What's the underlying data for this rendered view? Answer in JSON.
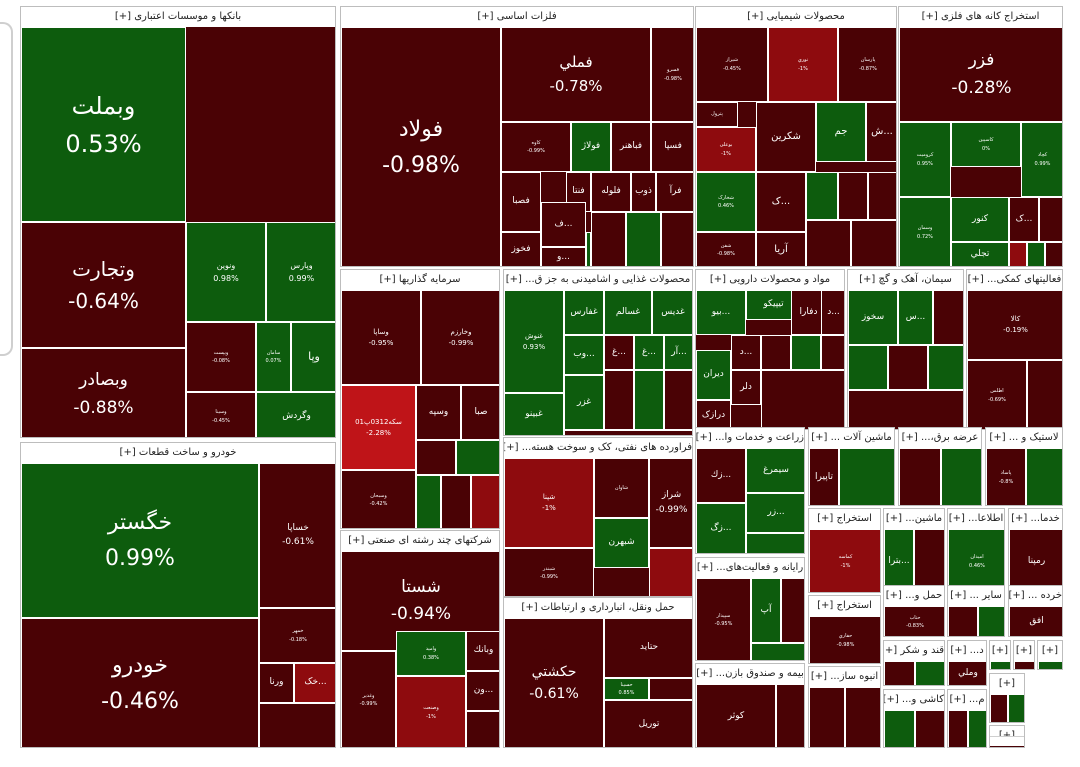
{
  "chart_data": {
    "type": "treemap",
    "title": "",
    "color_legend": {
      "positive": "#0d5c0d",
      "negative_low": "#4a0205",
      "negative_mid": "#8e0b0e",
      "negative_high": "#bf1418"
    },
    "sectors": [
      {
        "id": "banks",
        "title": "بانکها و موسسات اعتباری [+]",
        "tiles": [
          {
            "name": "وبملت",
            "pct": "0.53%",
            "change": 0.53
          },
          {
            "name": "وتجارت",
            "pct": "-0.64%",
            "change": -0.64
          },
          {
            "name": "وبصادر",
            "pct": "-0.88%",
            "change": -0.88
          },
          {
            "name": "ونوین",
            "pct": "0.98%",
            "change": 0.98
          },
          {
            "name": "وپارس",
            "pct": "0.99%",
            "change": 0.99
          },
          {
            "name": "ویپست",
            "pct": "-0.08%",
            "change": -0.08
          },
          {
            "name": "سامان",
            "pct": "0.07%",
            "change": 0.07
          },
          {
            "name": "وپا",
            "pct": "",
            "change": 0.5
          },
          {
            "name": "وسینا",
            "pct": "-0.45%",
            "change": -0.45
          },
          {
            "name": "وگردش",
            "pct": "",
            "change": 0.4
          }
        ]
      },
      {
        "id": "metals",
        "title": "فلزات اساسی [+]",
        "tiles": [
          {
            "name": "فولاد",
            "pct": "-0.98%",
            "change": -0.98
          },
          {
            "name": "فملي",
            "pct": "-0.78%",
            "change": -0.78
          },
          {
            "name": "فسپا",
            "pct": "",
            "change": -0.3
          },
          {
            "name": "فباهنر",
            "pct": "",
            "change": -0.3
          },
          {
            "name": "فولاژ",
            "pct": "",
            "change": 0.3
          },
          {
            "name": "ذوب",
            "pct": "",
            "change": -0.3
          },
          {
            "name": "فلوله",
            "pct": "",
            "change": -0.4
          },
          {
            "name": "فنتا",
            "pct": "",
            "change": -0.5
          },
          {
            "name": "فصبا",
            "pct": "",
            "change": -0.3
          },
          {
            "name": "فخوز",
            "pct": "",
            "change": -0.4
          },
          {
            "name": "ف...",
            "pct": "",
            "change": -0.3
          },
          {
            "name": "و...",
            "pct": "",
            "change": -0.3
          },
          {
            "name": "فرآ",
            "pct": "",
            "change": -0.2
          },
          {
            "name": "فسرو",
            "pct": "-0.98%",
            "change": -0.98
          },
          {
            "name": "کاوه",
            "pct": "-0.99%",
            "change": -0.99
          }
        ]
      },
      {
        "id": "chem",
        "title": "محصولات شیمیایی [+]",
        "tiles": [
          {
            "name": "شیراز",
            "pct": "-0.45%",
            "change": -0.45
          },
          {
            "name": "نوري",
            "pct": "-1%",
            "change": -1
          },
          {
            "name": "پارسان",
            "pct": "-0.87%",
            "change": -0.87
          },
          {
            "name": "پترول",
            "pct": "",
            "change": -0.5
          },
          {
            "name": "بوعلی",
            "pct": "-1%",
            "change": -1
          },
          {
            "name": "شکرین",
            "pct": "",
            "change": -0.4
          },
          {
            "name": "جم",
            "pct": "",
            "change": 0.4
          },
          {
            "name": "ش...",
            "pct": "",
            "change": -0.3
          },
          {
            "name": "شخارک",
            "pct": "0.46%",
            "change": 0.46
          },
          {
            "name": "ک...",
            "pct": "",
            "change": -0.3
          },
          {
            "name": "شفن",
            "pct": "-0.98%",
            "change": -0.98
          },
          {
            "name": "آریا",
            "pct": "",
            "change": -0.4
          }
        ]
      },
      {
        "id": "mining",
        "title": "استخراج کانه های فلزی [+]",
        "tiles": [
          {
            "name": "فزر",
            "pct": "-0.28%",
            "change": -0.28
          },
          {
            "name": "کروميت",
            "pct": "0.95%",
            "change": 0.95
          },
          {
            "name": "کاسپین",
            "pct": "0%",
            "change": 0
          },
          {
            "name": "کچاد",
            "pct": "0.99%",
            "change": 0.99
          },
          {
            "name": "وسمان",
            "pct": "0.72%",
            "change": 0.72
          },
          {
            "name": "کنور",
            "pct": "",
            "change": 0.4
          },
          {
            "name": "ک...",
            "pct": "",
            "change": -0.3
          },
          {
            "name": "تجلي",
            "pct": "",
            "change": 0.3
          }
        ]
      },
      {
        "id": "invest",
        "title": "سرمایه گذاریها [+]",
        "tiles": [
          {
            "name": "وساپا",
            "pct": "-0.95%",
            "change": -0.95
          },
          {
            "name": "وخارزم",
            "pct": "-0.99%",
            "change": -0.99
          },
          {
            "name": "سکه0312پ01",
            "pct": "-2.28%",
            "change": -2.28
          },
          {
            "name": "وسپه",
            "pct": "",
            "change": -0.4
          },
          {
            "name": "صبا",
            "pct": "",
            "change": -0.4
          },
          {
            "name": "وسبحان",
            "pct": "-0.42%",
            "change": -0.42
          }
        ]
      },
      {
        "id": "food",
        "title": "محصولات غذایی و اشامیدنی به جز ق... [+]",
        "tiles": [
          {
            "name": "غنوش",
            "pct": "0.93%",
            "change": 0.93
          },
          {
            "name": "غفارس",
            "pct": "",
            "change": 0.4
          },
          {
            "name": "غسالم",
            "pct": "",
            "change": 0.3
          },
          {
            "name": "غدیس",
            "pct": "",
            "change": 0.3
          },
          {
            "name": "وب...",
            "pct": "",
            "change": 0.3
          },
          {
            "name": "غ...",
            "pct": "",
            "change": -0.3
          },
          {
            "name": "غ...",
            "pct": "",
            "change": 0.3
          },
          {
            "name": "آر...",
            "pct": "",
            "change": 0.3
          },
          {
            "name": "غزر",
            "pct": "",
            "change": 0.3
          },
          {
            "name": "غبينو",
            "pct": "",
            "change": 0.4
          }
        ]
      },
      {
        "id": "pharma",
        "title": "مواد و محصولات دارویی [+]",
        "tiles": [
          {
            "name": "بيو...",
            "pct": "",
            "change": 0.3
          },
          {
            "name": "تیپیکو",
            "pct": "",
            "change": 0.4
          },
          {
            "name": "دفارا",
            "pct": "",
            "change": -0.3
          },
          {
            "name": "د...",
            "pct": "",
            "change": -0.3
          },
          {
            "name": "د...",
            "pct": "",
            "change": -0.3
          },
          {
            "name": "ديران",
            "pct": "",
            "change": 0.4
          },
          {
            "name": "دلر",
            "pct": "",
            "change": -0.3
          },
          {
            "name": "درازک",
            "pct": "",
            "change": -0.4
          }
        ]
      },
      {
        "id": "cement",
        "title": "سیمان، آهک و گچ [+]",
        "tiles": [
          {
            "name": "سخوز",
            "pct": "",
            "change": 0.4
          },
          {
            "name": "س...",
            "pct": "",
            "change": 0.3
          }
        ]
      },
      {
        "id": "support",
        "title": "فعالیتهای کمکی... [+]",
        "tiles": [
          {
            "name": "کالا",
            "pct": "-0.19%",
            "change": -0.19
          },
          {
            "name": "اطلس",
            "pct": "-0.69%",
            "change": -0.69
          }
        ]
      },
      {
        "id": "auto",
        "title": "خودرو و ساخت قطعات [+]",
        "tiles": [
          {
            "name": "خگستر",
            "pct": "0.99%",
            "change": 0.99
          },
          {
            "name": "خودرو",
            "pct": "-0.46%",
            "change": -0.46
          },
          {
            "name": "خساپا",
            "pct": "-0.61%",
            "change": -0.61
          },
          {
            "name": "خمهر",
            "pct": "-0.18%",
            "change": -0.18
          },
          {
            "name": "ورنا",
            "pct": "",
            "change": -0.3
          },
          {
            "name": "خک...",
            "pct": "",
            "change": -1
          }
        ]
      },
      {
        "id": "refinery",
        "title": "فراورده های نفتی، کک و سوخت هسته... [+]",
        "tiles": [
          {
            "name": "شپنا",
            "pct": "-1%",
            "change": -1
          },
          {
            "name": "شاوان",
            "pct": "",
            "change": -0.4
          },
          {
            "name": "شراز",
            "pct": "-0.99%",
            "change": -0.99
          },
          {
            "name": "شبهرن",
            "pct": "",
            "change": 0.3
          },
          {
            "name": "شبندر",
            "pct": "-0.99%",
            "change": -0.99
          }
        ]
      },
      {
        "id": "multi",
        "title": "شرکتهای چند رشته ای صنعتی [+]",
        "tiles": [
          {
            "name": "شستا",
            "pct": "-0.94%",
            "change": -0.94
          },
          {
            "name": "وغدير",
            "pct": "-0.99%",
            "change": -0.99
          },
          {
            "name": "وصنعت",
            "pct": "-1%",
            "change": -1
          },
          {
            "name": "واميد",
            "pct": "0.38%",
            "change": 0.38
          },
          {
            "name": "وبانك",
            "pct": "",
            "change": -0.3
          },
          {
            "name": "ون...",
            "pct": "",
            "change": -0.3
          }
        ]
      },
      {
        "id": "transport",
        "title": "حمل ونقل، انبارداری و ارتباطات [+]",
        "tiles": [
          {
            "name": "حکشتي",
            "pct": "-0.61%",
            "change": -0.61
          },
          {
            "name": "حتايد",
            "pct": "",
            "change": -0.3
          },
          {
            "name": "حسينا",
            "pct": "0.85%",
            "change": 0.85
          },
          {
            "name": "توريل",
            "pct": "",
            "change": -0.4
          }
        ]
      },
      {
        "id": "agri",
        "title": "زراعت و خدمات وا... [+]",
        "tiles": [
          {
            "name": "سيمرغ",
            "pct": "",
            "change": 0.4
          },
          {
            "name": "زك...",
            "pct": "",
            "change": -0.3
          },
          {
            "name": "زگ...",
            "pct": "",
            "change": 0.3
          },
          {
            "name": "زر...",
            "pct": "",
            "change": 0.3
          }
        ]
      },
      {
        "id": "machinery",
        "title": "ماشین آلات ... [+]",
        "tiles": [
          {
            "name": "تاپيرا",
            "pct": "",
            "change": -0.4
          }
        ]
      },
      {
        "id": "utility",
        "title": "عرضه برق،... [+]",
        "tiles": []
      },
      {
        "id": "rubber",
        "title": "لاستیک و ... [+]",
        "tiles": [
          {
            "name": "پاساد",
            "pct": "-0.8%",
            "change": -0.8
          }
        ]
      },
      {
        "id": "oilx",
        "title": "استخراج [+]",
        "tiles": [
          {
            "name": "کماسه",
            "pct": "-1%",
            "change": -1
          }
        ]
      },
      {
        "id": "mach2",
        "title": "ماشین... [+]",
        "tiles": [
          {
            "name": "بترا...",
            "pct": "",
            "change": 0.3
          }
        ]
      },
      {
        "id": "info",
        "title": "اطلاعا... [+]",
        "tiles": [
          {
            "name": "امیدان",
            "pct": "0.46%",
            "change": 0.46
          }
        ]
      },
      {
        "id": "services",
        "title": "خدما... [+]",
        "tiles": [
          {
            "name": "رمپنا",
            "pct": "",
            "change": -0.4
          }
        ]
      },
      {
        "id": "computer",
        "title": "رایانه و فعالیت‌های... [+]",
        "tiles": [
          {
            "name": "سپيدار",
            "pct": "-0.95%",
            "change": -0.95
          },
          {
            "name": "آپ",
            "pct": "",
            "change": 0.3
          }
        ]
      },
      {
        "id": "oilx2",
        "title": "استخراج [+]",
        "tiles": [
          {
            "name": "حفاري",
            "pct": "-0.98%",
            "change": -0.98
          }
        ]
      },
      {
        "id": "transport2",
        "title": "حمل و... [+]",
        "tiles": [
          {
            "name": "حتاب",
            "pct": "-0.83%",
            "change": -0.83
          }
        ]
      },
      {
        "id": "other",
        "title": "سایر ... [+]",
        "tiles": []
      },
      {
        "id": "retail",
        "title": "خرده ... [+]",
        "tiles": [
          {
            "name": "افق",
            "pct": "",
            "change": -0.3
          }
        ]
      },
      {
        "id": "sugar",
        "title": "قند و شکر [+]",
        "tiles": []
      },
      {
        "id": "dx",
        "title": "د... [+]",
        "tiles": [
          {
            "name": "وملي",
            "pct": "",
            "change": -0.3
          }
        ]
      },
      {
        "id": "insurance",
        "title": "بیمه و صندوق بازن... [+]",
        "tiles": [
          {
            "name": "کوثر",
            "pct": "",
            "change": -0.4
          }
        ]
      },
      {
        "id": "mass",
        "title": "انبوه ساز... [+]",
        "tiles": []
      },
      {
        "id": "tiles",
        "title": "کاشی و... [+]",
        "tiles": []
      },
      {
        "id": "m",
        "title": "م... [+]",
        "tiles": []
      },
      {
        "id": "plus1",
        "title": "[+]",
        "tiles": []
      },
      {
        "id": "plus2",
        "title": "[+]",
        "tiles": []
      },
      {
        "id": "plus3",
        "title": "[+]",
        "tiles": []
      },
      {
        "id": "plus4",
        "title": "[+]",
        "tiles": []
      },
      {
        "id": "plus5",
        "title": "[+]",
        "tiles": []
      }
    ]
  }
}
